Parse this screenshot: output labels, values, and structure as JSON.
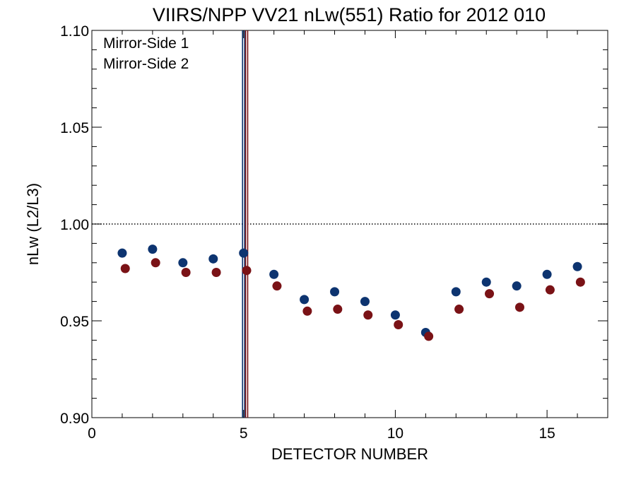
{
  "chart_data": {
    "type": "scatter",
    "title": "VIIRS/NPP VV21 nLw(551) Ratio for 2012 010",
    "xlabel": "DETECTOR NUMBER",
    "ylabel": "nLw (L2/L3)",
    "xlim": [
      0,
      17
    ],
    "ylim": [
      0.9,
      1.1
    ],
    "x_ticks": [
      0,
      5,
      10,
      15
    ],
    "x_tick_labels": [
      "0",
      "5",
      "10",
      "15"
    ],
    "y_ticks": [
      0.9,
      0.95,
      1.0,
      1.05,
      1.1
    ],
    "y_tick_labels": [
      "0.90",
      "0.95",
      "1.00",
      "1.05",
      "1.10"
    ],
    "reference_line": {
      "y": 1.0,
      "style": "dotted"
    },
    "legend_position": "top-left",
    "series": [
      {
        "name": "Mirror-Side 1",
        "color": "#0d3470",
        "x": [
          1,
          2,
          3,
          4,
          5,
          6,
          7,
          8,
          9,
          10,
          11,
          12,
          13,
          14,
          15,
          16
        ],
        "values": [
          0.985,
          0.987,
          0.98,
          0.982,
          0.985,
          0.974,
          0.961,
          0.965,
          0.96,
          0.953,
          0.944,
          0.965,
          0.97,
          0.968,
          0.974,
          0.978
        ],
        "vertical_marker_x": 5
      },
      {
        "name": "Mirror-Side 2",
        "color": "#7a1216",
        "x": [
          1.1,
          2.1,
          3.1,
          4.1,
          5.1,
          6.1,
          7.1,
          8.1,
          9.1,
          10.1,
          11.1,
          12.1,
          13.1,
          14.1,
          15.1,
          16.1
        ],
        "values": [
          0.977,
          0.98,
          0.975,
          0.975,
          0.976,
          0.968,
          0.955,
          0.956,
          0.953,
          0.948,
          0.942,
          0.956,
          0.964,
          0.957,
          0.966,
          0.97
        ],
        "vertical_marker_x": 5.1
      }
    ]
  }
}
